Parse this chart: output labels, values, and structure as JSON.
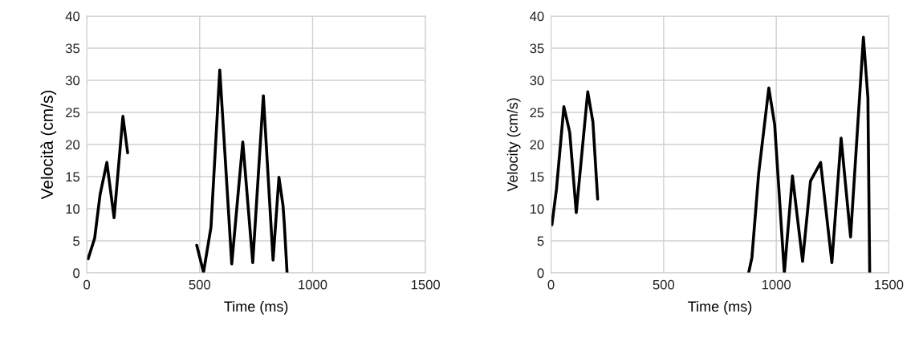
{
  "chart_data": [
    {
      "type": "line",
      "xlabel": "Time (ms)",
      "ylabel": "Velocità (cm/s)",
      "xlim": [
        0,
        1500
      ],
      "xticks": [
        0,
        500,
        1000,
        1500
      ],
      "ylim": [
        0,
        40
      ],
      "yticks": [
        0,
        5,
        10,
        15,
        20,
        25,
        30,
        35,
        40
      ],
      "grid": true,
      "line_style": "solid",
      "series": [
        {
          "color": "#000000",
          "x": [
            6,
            35,
            59,
            89,
            121,
            160,
            181,
            300,
            487,
            517,
            550,
            589,
            642,
            691,
            735,
            782,
            825,
            851,
            869,
            875,
            887
          ],
          "values": [
            2.2,
            5.4,
            12.2,
            17.2,
            8.6,
            24.4,
            18.7,
            null,
            4.3,
            0.1,
            7.1,
            31.6,
            1.4,
            20.4,
            1.6,
            27.6,
            2.0,
            14.9,
            10.5,
            7.5,
            0
          ]
        }
      ]
    },
    {
      "type": "line",
      "xlabel": "Time (ms)",
      "ylabel": "Velocity (cm/s)",
      "xlim": [
        0,
        1500
      ],
      "xticks": [
        0,
        500,
        1000,
        1500
      ],
      "ylim": [
        0,
        40
      ],
      "yticks": [
        0,
        5,
        10,
        15,
        20,
        25,
        30,
        35,
        40
      ],
      "grid": true,
      "line_style": "solid",
      "series": [
        {
          "color": "#000000",
          "x": [
            4,
            24,
            57,
            83,
            112,
            163,
            186,
            207,
            500,
            878,
            892,
            922,
            967,
            993,
            1036,
            1072,
            1117,
            1152,
            1197,
            1247,
            1288,
            1330,
            1387,
            1407,
            1415
          ],
          "values": [
            7.5,
            13,
            25.9,
            21.9,
            9.4,
            28.2,
            23.5,
            11.5,
            null,
            0.1,
            2.4,
            15.5,
            28.8,
            23.1,
            0,
            15.1,
            1.8,
            14.3,
            17.2,
            1.6,
            21.0,
            5.6,
            36.7,
            27.3,
            0
          ]
        }
      ]
    }
  ]
}
